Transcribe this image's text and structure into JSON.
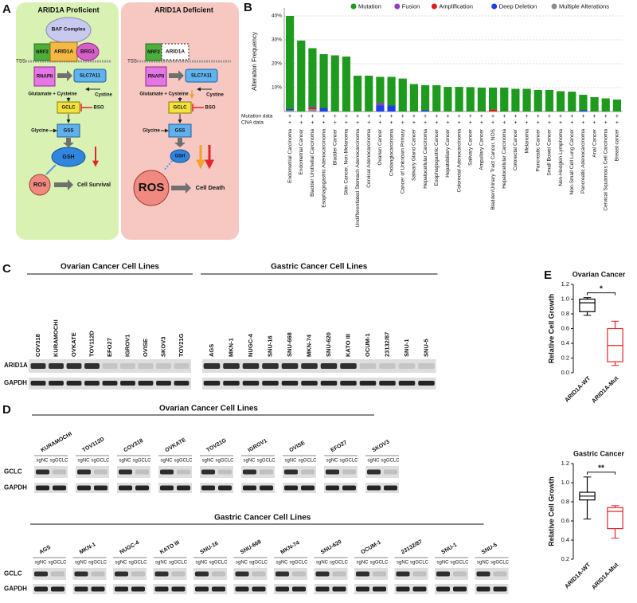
{
  "panel_labels": [
    "A",
    "B",
    "C",
    "D",
    "E"
  ],
  "diagram": {
    "left": {
      "title": "ARID1A Proficient",
      "baf": "BAF Complex",
      "nrf2": "NRF2",
      "arid1a": "ARID1A",
      "brg1": "BRG1",
      "tss": "TSS",
      "rnapii": "RNAPII",
      "slc7a11": "SLC7A11",
      "substrates": "Glutamate + Cysteine",
      "cystine": "Cystine",
      "gclc": "GCLC",
      "bso": "BSO",
      "glycine": "Glycine",
      "gss": "GSS",
      "gsh": "GSH",
      "ros": "ROS",
      "outcome": "Cell Survival"
    },
    "right": {
      "title": "ARID1A Deficient",
      "nrf2": "NRF2",
      "arid1a": "ARID1A",
      "tss": "TSS",
      "rnapii": "RNAPII",
      "slc7a11": "SLC7A11",
      "substrates": "Glutamate + Cysteine",
      "cystine": "Cystine",
      "gclc": "GCLC",
      "bso": "BSO",
      "glycine": "Glycine",
      "gss": "GSS",
      "gsh": "GSH",
      "ros": "ROS",
      "outcome": "Cell Death"
    }
  },
  "chart_data": [
    {
      "type": "bar",
      "y_label": "Alteration Frequency",
      "row_labels": [
        "Mutation data",
        "CNA data"
      ],
      "row_marker": "+",
      "categories": [
        "Endometrial Carcinoma",
        "Endometrial Cancer",
        "Bladder Urothelial Carcinoma",
        "Esophagogastric Adenocarcinoma",
        "Bladder Cancer",
        "Skin Cancer, Non-Melanoma",
        "Undifferentiated Stomach Adenocarcinoma",
        "Cervical Adenocarcinoma",
        "Ovarian Cancer",
        "Cholangiocarcinoma",
        "Cancer of Unknown Primary",
        "Salivary Gland Cancer",
        "Hepatocellular Carcinoma",
        "Esophagogastric Cancer",
        "Hepatobiliary Cancer",
        "Colorectal Adenocarcinoma",
        "Salivary Cancer",
        "Ampullary Cancer",
        "Bladder/Urinary Tract Cancer, NOS",
        "Hepatocellular Carcinoma",
        "Colorectal Cancer",
        "Melanoma",
        "Pancreatic Cancer",
        "Small Bowel Cancer",
        "Non-Hodgkin Lymphoma",
        "Non-Small Cell Lung Cancer",
        "Pancreatic Adenocarcinoma",
        "Anal Cancer",
        "Cervical Squamous Cell Carcinoma",
        "Breast cancer"
      ],
      "series": [
        {
          "name": "Mutation",
          "color": "#1e9a1e",
          "values": [
            39,
            29.7,
            24.5,
            22.5,
            23.5,
            23,
            15,
            15,
            11,
            12,
            13.8,
            11.5,
            10.5,
            11,
            10.3,
            10.3,
            10.2,
            10,
            9.2,
            10,
            9.5,
            9.5,
            9,
            9,
            8.5,
            8.3,
            6.5,
            6,
            5.5,
            5
          ]
        },
        {
          "name": "Fusion",
          "color": "#8e3fc4",
          "values": [
            0,
            0,
            0.5,
            0,
            0,
            0,
            0,
            0,
            1,
            0,
            0,
            0,
            0,
            0,
            0,
            0,
            0,
            0,
            0,
            0,
            0,
            0,
            0,
            0,
            0,
            0,
            0,
            0,
            0,
            0
          ]
        },
        {
          "name": "Amplification",
          "color": "#e41a1c",
          "values": [
            0,
            0,
            0.5,
            0,
            0,
            0,
            0,
            0,
            0,
            0,
            0,
            0,
            0,
            0,
            0,
            0,
            0,
            0,
            0.8,
            0,
            0,
            0,
            0,
            0,
            0,
            0,
            0,
            0,
            0,
            0
          ]
        },
        {
          "name": "Deep Deletion",
          "color": "#1f3fe6",
          "values": [
            0.5,
            0,
            0,
            1.5,
            0,
            0,
            0,
            0,
            2.5,
            2.5,
            0,
            0,
            0.5,
            0,
            0,
            0,
            0,
            0,
            0,
            0,
            0,
            0,
            0,
            0,
            0,
            0,
            0.5,
            0,
            0,
            0
          ]
        },
        {
          "name": "Multiple Alterations",
          "color": "#8c8c8c",
          "values": [
            0.5,
            0,
            1,
            0,
            0,
            0,
            0,
            0,
            0,
            0,
            0,
            0,
            0,
            0,
            0,
            0,
            0,
            0,
            0,
            0,
            0,
            0,
            0,
            0,
            0,
            0,
            0,
            0,
            0,
            0
          ]
        }
      ],
      "ylim": [
        0,
        42
      ],
      "yticks": [
        {
          "value": 10,
          "label": "10%"
        },
        {
          "value": 20,
          "label": "20%"
        },
        {
          "value": 30,
          "label": "30%"
        },
        {
          "value": 40,
          "label": "40%"
        }
      ],
      "grid": true
    },
    {
      "type": "box",
      "title": "Ovarian Cancer",
      "y_label": "Relative Cell Growth",
      "categories": [
        "ARID1A-WT",
        "ARID1A-Mut"
      ],
      "colors": [
        "#000000",
        "#e0262b"
      ],
      "boxes": [
        {
          "min": 0.78,
          "q1": 0.83,
          "median": 0.95,
          "q3": 1.0,
          "max": 1.02
        },
        {
          "min": 0.1,
          "q1": 0.15,
          "median": 0.37,
          "q3": 0.6,
          "max": 0.7
        }
      ],
      "significance": "*",
      "ylim": [
        0,
        1.2
      ],
      "yticks": [
        {
          "value": 0,
          "label": "0.0"
        },
        0.2,
        0.4,
        0.6,
        0.8,
        {
          "value": 1,
          "label": "1.0"
        },
        1.2
      ]
    },
    {
      "type": "box",
      "title": "Gastric Cancer",
      "y_label": "Relative Cell Growth",
      "categories": [
        "ARID1A-WT",
        "ARID1A-Mut"
      ],
      "colors": [
        "#000000",
        "#e0262b"
      ],
      "boxes": [
        {
          "min": 0.62,
          "q1": 0.82,
          "median": 0.86,
          "q3": 0.9,
          "max": 1.06
        },
        {
          "min": 0.42,
          "q1": 0.52,
          "median": 0.7,
          "q3": 0.74,
          "max": 0.76
        }
      ],
      "significance": "**",
      "ylim": [
        0.2,
        1.2
      ],
      "yticks": [
        0.2,
        0.4,
        0.6,
        0.8,
        {
          "value": 1,
          "label": "1.0"
        },
        1.2
      ]
    }
  ],
  "blot_c": {
    "rows": [
      "ARID1A",
      "GAPDH"
    ],
    "groups": [
      {
        "title": "Ovarian Cancer Cell Lines",
        "lanes": [
          {
            "label": "COV318",
            "color": "#000000"
          },
          {
            "label": "KURAMOCHI",
            "color": "#000000"
          },
          {
            "label": "OVKATE",
            "color": "#000000"
          },
          {
            "label": "TOV112D",
            "color": "#000000"
          },
          {
            "label": "EFO27",
            "color": "#d9262b"
          },
          {
            "label": "IGROV1",
            "color": "#d9262b"
          },
          {
            "label": "OVISE",
            "color": "#d9262b"
          },
          {
            "label": "SKOV3",
            "color": "#d9262b"
          },
          {
            "label": "TOV21G",
            "color": "#d9262b"
          }
        ]
      },
      {
        "title": "Gastric Cancer Cell Lines",
        "lanes": [
          {
            "label": "AGS",
            "color": "#000000"
          },
          {
            "label": "MKN-1",
            "color": "#000000"
          },
          {
            "label": "NUGC-4",
            "color": "#000000"
          },
          {
            "label": "SNU-16",
            "color": "#000000"
          },
          {
            "label": "SNU-668",
            "color": "#000000"
          },
          {
            "label": "MKN-74",
            "color": "#000000"
          },
          {
            "label": "SNU-620",
            "color": "#000000"
          },
          {
            "label": "KATO III",
            "color": "#000000"
          },
          {
            "label": "OCUM-1",
            "color": "#d9262b"
          },
          {
            "label": "23132/87",
            "color": "#d9262b"
          },
          {
            "label": "SNU-1",
            "color": "#d9262b"
          },
          {
            "label": "SNU-5",
            "color": "#d9262b"
          }
        ]
      }
    ]
  },
  "blot_d": {
    "rows": [
      "GCLC",
      "GAPDH"
    ],
    "conditions": [
      "sgNC",
      "sgGCLC"
    ],
    "groups": [
      {
        "title": "Ovarian Cancer Cell Lines",
        "lines": [
          {
            "label": "KURAMOCHI",
            "color": "#000000"
          },
          {
            "label": "TOV112D",
            "color": "#000000"
          },
          {
            "label": "COV318",
            "color": "#000000"
          },
          {
            "label": "OVKATE",
            "color": "#000000"
          },
          {
            "label": "TOV21G",
            "color": "#d9262b"
          },
          {
            "label": "IGROV1",
            "color": "#d9262b"
          },
          {
            "label": "OVISE",
            "color": "#d9262b"
          },
          {
            "label": "EFO27",
            "color": "#d9262b"
          },
          {
            "label": "SKOV3",
            "color": "#d9262b"
          }
        ]
      },
      {
        "title": "Gastric Cancer Cell Lines",
        "lines": [
          {
            "label": "AGS",
            "color": "#000000"
          },
          {
            "label": "MKN-1",
            "color": "#000000"
          },
          {
            "label": "NUGC-4",
            "color": "#000000"
          },
          {
            "label": "KATO III",
            "color": "#000000"
          },
          {
            "label": "SNU-16",
            "color": "#000000"
          },
          {
            "label": "SNU-668",
            "color": "#000000"
          },
          {
            "label": "MKN-74",
            "color": "#000000"
          },
          {
            "label": "SNU-620",
            "color": "#000000"
          },
          {
            "label": "OCUM-1",
            "color": "#d9262b"
          },
          {
            "label": "23132/87",
            "color": "#d9262b"
          },
          {
            "label": "SNU-1",
            "color": "#d9262b"
          },
          {
            "label": "SNU-5",
            "color": "#d9262b"
          }
        ]
      }
    ]
  }
}
